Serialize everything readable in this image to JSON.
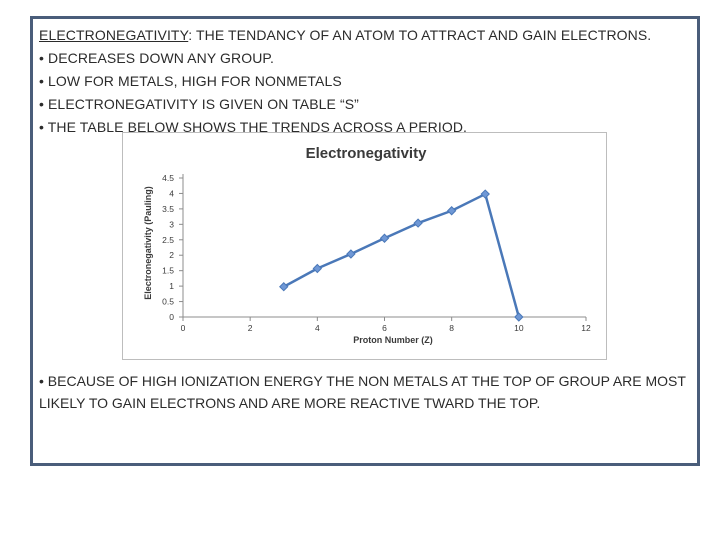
{
  "text": {
    "heading_term": "ELECTRONEGATIVITY",
    "heading_rest": ": THE TENDANCY OF AN ATOM TO ATTRACT AND GAIN ELECTRONS.",
    "bullets": [
      "• DECREASES DOWN ANY GROUP.",
      "• LOW FOR METALS, HIGH FOR NONMETALS",
      "• ELECTRONEGATIVITY IS GIVEN ON TABLE “S”",
      "• THE TABLE BELOW SHOWS THE TRENDS ACROSS A PERIOD."
    ],
    "closing": "• BECAUSE OF HIGH IONIZATION ENERGY THE  NON METALS  AT THE TOP OF GROUP ARE MOST LIKELY TO GAIN ELECTRONS AND ARE MORE REACTIVE TWARD THE TOP."
  },
  "colors": {
    "frame": "#4a5d7a",
    "series": "#4a78b8",
    "marker": "#6f98d6"
  },
  "chart_data": {
    "type": "line",
    "title": "Electronegativity",
    "xlabel": "Proton Number (Z)",
    "ylabel": "Electronegativity (Pauling)",
    "xlim": [
      0,
      12
    ],
    "ylim": [
      0,
      4.5
    ],
    "xticks": [
      "0",
      "2",
      "4",
      "6",
      "8",
      "10",
      "12"
    ],
    "yticks": [
      "0",
      "0.5",
      "1",
      "1.5",
      "2",
      "2.5",
      "3",
      "3.5",
      "4",
      "4.5"
    ],
    "x": [
      3,
      4,
      5,
      6,
      7,
      8,
      9,
      10
    ],
    "y": [
      0.98,
      1.57,
      2.04,
      2.55,
      3.04,
      3.44,
      3.98,
      0
    ],
    "grid": false,
    "legend": "none"
  }
}
